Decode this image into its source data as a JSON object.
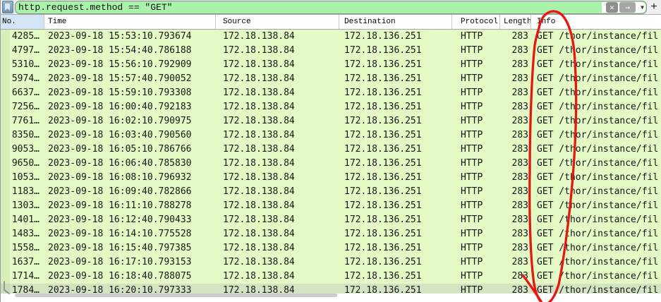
{
  "filter_bar": {
    "query": "http.request.method == \"GET\"",
    "bookmark_icon": "bookmark",
    "clear_button": "✕",
    "apply_button": "→",
    "dropdown_caret": "▼",
    "add_filter_button": "+"
  },
  "columns": [
    {
      "label": "No.",
      "sorted": true
    },
    {
      "label": "Time"
    },
    {
      "label": "Source"
    },
    {
      "label": "Destination"
    },
    {
      "label": "Protocol"
    },
    {
      "label": "Length"
    },
    {
      "label": "Info"
    }
  ],
  "packets": {
    "rows": [
      {
        "no": "4285…",
        "time": "2023-09-18 15:53:10.793674",
        "source": "172.18.138.84",
        "destination": "172.18.136.251",
        "protocol": "HTTP",
        "length": "283",
        "info": "GET /thor/instance/fil"
      },
      {
        "no": "4797…",
        "time": "2023-09-18 15:54:40.786188",
        "source": "172.18.138.84",
        "destination": "172.18.136.251",
        "protocol": "HTTP",
        "length": "283",
        "info": "GET /thor/instance/fil"
      },
      {
        "no": "5310…",
        "time": "2023-09-18 15:56:10.792909",
        "source": "172.18.138.84",
        "destination": "172.18.136.251",
        "protocol": "HTTP",
        "length": "283",
        "info": "GET /thor/instance/fil"
      },
      {
        "no": "5974…",
        "time": "2023-09-18 15:57:40.790052",
        "source": "172.18.138.84",
        "destination": "172.18.136.251",
        "protocol": "HTTP",
        "length": "283",
        "info": "GET /thor/instance/fil"
      },
      {
        "no": "6637…",
        "time": "2023-09-18 15:59:10.793308",
        "source": "172.18.138.84",
        "destination": "172.18.136.251",
        "protocol": "HTTP",
        "length": "283",
        "info": "GET /thor/instance/fil"
      },
      {
        "no": "7256…",
        "time": "2023-09-18 16:00:40.792183",
        "source": "172.18.138.84",
        "destination": "172.18.136.251",
        "protocol": "HTTP",
        "length": "283",
        "info": "GET /thor/instance/fil"
      },
      {
        "no": "7761…",
        "time": "2023-09-18 16:02:10.790975",
        "source": "172.18.138.84",
        "destination": "172.18.136.251",
        "protocol": "HTTP",
        "length": "283",
        "info": "GET /thor/instance/fil"
      },
      {
        "no": "8350…",
        "time": "2023-09-18 16:03:40.790560",
        "source": "172.18.138.84",
        "destination": "172.18.136.251",
        "protocol": "HTTP",
        "length": "283",
        "info": "GET /thor/instance/fil"
      },
      {
        "no": "9053…",
        "time": "2023-09-18 16:05:10.786766",
        "source": "172.18.138.84",
        "destination": "172.18.136.251",
        "protocol": "HTTP",
        "length": "283",
        "info": "GET /thor/instance/fil"
      },
      {
        "no": "9650…",
        "time": "2023-09-18 16:06:40.785830",
        "source": "172.18.138.84",
        "destination": "172.18.136.251",
        "protocol": "HTTP",
        "length": "283",
        "info": "GET /thor/instance/fil"
      },
      {
        "no": "1053…",
        "time": "2023-09-18 16:08:10.796932",
        "source": "172.18.138.84",
        "destination": "172.18.136.251",
        "protocol": "HTTP",
        "length": "283",
        "info": "GET /thor/instance/fil"
      },
      {
        "no": "1183…",
        "time": "2023-09-18 16:09:40.782866",
        "source": "172.18.138.84",
        "destination": "172.18.136.251",
        "protocol": "HTTP",
        "length": "283",
        "info": "GET /thor/instance/fil"
      },
      {
        "no": "1303…",
        "time": "2023-09-18 16:11:10.788278",
        "source": "172.18.138.84",
        "destination": "172.18.136.251",
        "protocol": "HTTP",
        "length": "283",
        "info": "GET /thor/instance/fil"
      },
      {
        "no": "1401…",
        "time": "2023-09-18 16:12:40.790433",
        "source": "172.18.138.84",
        "destination": "172.18.136.251",
        "protocol": "HTTP",
        "length": "283",
        "info": "GET /thor/instance/fil"
      },
      {
        "no": "1483…",
        "time": "2023-09-18 16:14:10.775528",
        "source": "172.18.138.84",
        "destination": "172.18.136.251",
        "protocol": "HTTP",
        "length": "283",
        "info": "GET /thor/instance/fil"
      },
      {
        "no": "1558…",
        "time": "2023-09-18 16:15:40.797385",
        "source": "172.18.138.84",
        "destination": "172.18.136.251",
        "protocol": "HTTP",
        "length": "283",
        "info": "GET /thor/instance/fil"
      },
      {
        "no": "1637…",
        "time": "2023-09-18 16:17:10.793153",
        "source": "172.18.138.84",
        "destination": "172.18.136.251",
        "protocol": "HTTP",
        "length": "283",
        "info": "GET /thor/instance/fil"
      },
      {
        "no": "1714…",
        "time": "2023-09-18 16:18:40.788075",
        "source": "172.18.138.84",
        "destination": "172.18.136.251",
        "protocol": "HTTP",
        "length": "283",
        "info": "GET /thor/instance/fil"
      },
      {
        "no": "1784…",
        "time": "2023-09-18 16:20:10.797333",
        "source": "172.18.138.84",
        "destination": "172.18.136.251",
        "protocol": "HTTP",
        "length": "283",
        "info": "GET /thor/instance/fil"
      }
    ]
  },
  "annotation": {
    "description": "hand-drawn red ellipse circling the GET values in the Info column",
    "color": "#e81612"
  },
  "colors": {
    "filter_valid_green": "#a9f2a9",
    "row_green": "#e4fac5",
    "sorted_header_blue": "#d3e5f5",
    "annotation_red": "#e81612"
  }
}
